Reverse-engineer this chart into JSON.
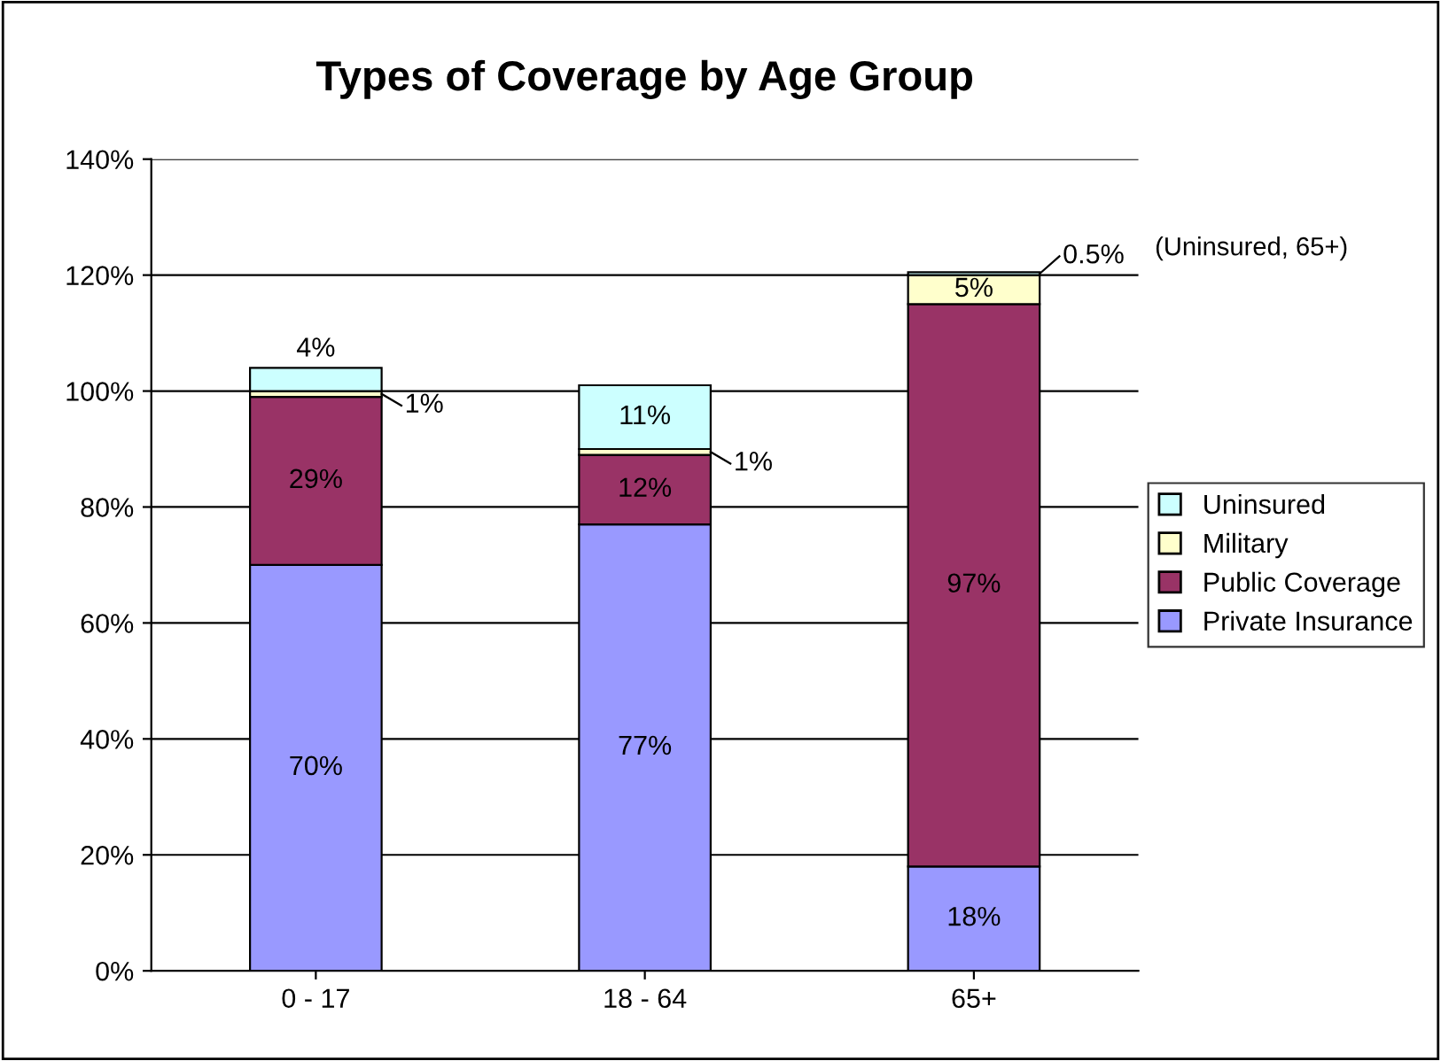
{
  "chart_data": {
    "type": "bar",
    "title": "Types of Coverage by Age Group",
    "stacked": true,
    "categories": [
      "0 - 17",
      "18 - 64",
      "65+"
    ],
    "series": [
      {
        "name": "Private Insurance",
        "color": "#9999ff",
        "values": [
          70,
          77,
          18
        ],
        "value_labels": [
          "70%",
          "77%",
          "18%"
        ]
      },
      {
        "name": "Public Coverage",
        "color": "#993366",
        "values": [
          29,
          12,
          97
        ],
        "value_labels": [
          "29%",
          "12%",
          "97%"
        ]
      },
      {
        "name": "Military",
        "color": "#ffffcc",
        "values": [
          1,
          1,
          5
        ],
        "value_labels": [
          "1%",
          "1%",
          "5%"
        ]
      },
      {
        "name": "Uninsured",
        "color": "#ccffff",
        "values": [
          4,
          11,
          0.5
        ],
        "value_labels": [
          "4%",
          "11%",
          "0.5%"
        ]
      }
    ],
    "ylim": [
      0,
      140
    ],
    "yticks": [
      {
        "value": 0,
        "label": "0%"
      },
      {
        "value": 20,
        "label": "20%"
      },
      {
        "value": 40,
        "label": "40%"
      },
      {
        "value": 60,
        "label": "60%"
      },
      {
        "value": 80,
        "label": "80%"
      },
      {
        "value": 100,
        "label": "100%"
      },
      {
        "value": 120,
        "label": "120%"
      },
      {
        "value": 140,
        "label": "140%"
      }
    ],
    "grid": "y",
    "legend": "right",
    "annotations": [
      "(Uninsured, 65+)"
    ]
  }
}
